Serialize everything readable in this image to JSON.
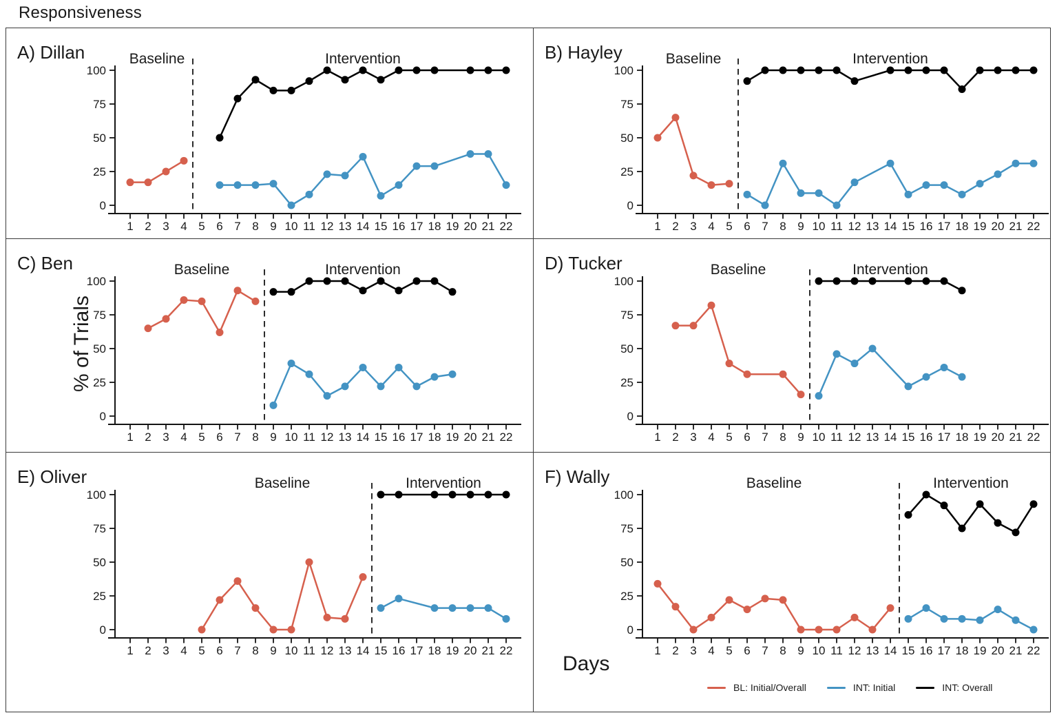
{
  "title": "Responsiveness",
  "ylabel": "% of Trials",
  "xlabel": "Days",
  "colors": {
    "bl_initial_overall": "#d6604d",
    "int_initial": "#4393c3",
    "int_overall": "#000000"
  },
  "phase_labels": {
    "baseline": "Baseline",
    "intervention": "Intervention"
  },
  "legend": {
    "items": [
      {
        "label": "BL: Initial/Overall",
        "color_key": "bl_initial_overall"
      },
      {
        "label": "INT: Initial",
        "color_key": "int_initial"
      },
      {
        "label": "INT: Overall",
        "color_key": "int_overall"
      }
    ]
  },
  "axes": {
    "ylim": [
      0,
      100
    ],
    "yticks": [
      0,
      25,
      50,
      75,
      100
    ],
    "xticks": [
      1,
      2,
      3,
      4,
      5,
      6,
      7,
      8,
      9,
      10,
      11,
      12,
      13,
      14,
      15,
      16,
      17,
      18,
      19,
      20,
      21,
      22
    ]
  },
  "chart_data": [
    {
      "panel_label": "A) Dillan",
      "type": "line",
      "phase_change_day": 4.5,
      "series": [
        {
          "name": "BL: Initial/Overall",
          "color_key": "bl_initial_overall",
          "points": [
            [
              1,
              17
            ],
            [
              2,
              17
            ],
            [
              3,
              25
            ],
            [
              4,
              33
            ]
          ]
        },
        {
          "name": "INT: Initial",
          "color_key": "int_initial",
          "points": [
            [
              6,
              15
            ],
            [
              7,
              15
            ],
            [
              8,
              15
            ],
            [
              9,
              16
            ],
            [
              10,
              0
            ],
            [
              11,
              8
            ],
            [
              12,
              23
            ],
            [
              13,
              22
            ],
            [
              14,
              36
            ],
            [
              15,
              7
            ],
            [
              16,
              15
            ],
            [
              17,
              29
            ],
            [
              18,
              29
            ],
            [
              20,
              38
            ],
            [
              21,
              38
            ],
            [
              22,
              15
            ]
          ]
        },
        {
          "name": "INT: Overall",
          "color_key": "int_overall",
          "points": [
            [
              6,
              50
            ],
            [
              7,
              79
            ],
            [
              8,
              93
            ],
            [
              9,
              85
            ],
            [
              10,
              85
            ],
            [
              11,
              92
            ],
            [
              12,
              100
            ],
            [
              13,
              93
            ],
            [
              14,
              100
            ],
            [
              15,
              93
            ],
            [
              16,
              100
            ],
            [
              17,
              100
            ],
            [
              18,
              100
            ],
            [
              20,
              100
            ],
            [
              21,
              100
            ],
            [
              22,
              100
            ]
          ]
        }
      ]
    },
    {
      "panel_label": "B) Hayley",
      "type": "line",
      "phase_change_day": 5.5,
      "series": [
        {
          "name": "BL: Initial/Overall",
          "color_key": "bl_initial_overall",
          "points": [
            [
              1,
              50
            ],
            [
              2,
              65
            ],
            [
              3,
              22
            ],
            [
              4,
              15
            ],
            [
              5,
              16
            ]
          ]
        },
        {
          "name": "INT: Initial",
          "color_key": "int_initial",
          "points": [
            [
              6,
              8
            ],
            [
              7,
              0
            ],
            [
              8,
              31
            ],
            [
              9,
              9
            ],
            [
              10,
              9
            ],
            [
              11,
              0
            ],
            [
              12,
              17
            ],
            [
              14,
              31
            ],
            [
              15,
              8
            ],
            [
              16,
              15
            ],
            [
              17,
              15
            ],
            [
              18,
              8
            ],
            [
              19,
              16
            ],
            [
              20,
              23
            ],
            [
              21,
              31
            ],
            [
              22,
              31
            ]
          ]
        },
        {
          "name": "INT: Overall",
          "color_key": "int_overall",
          "points": [
            [
              6,
              92
            ],
            [
              7,
              100
            ],
            [
              8,
              100
            ],
            [
              9,
              100
            ],
            [
              10,
              100
            ],
            [
              11,
              100
            ],
            [
              12,
              92
            ],
            [
              14,
              100
            ],
            [
              15,
              100
            ],
            [
              16,
              100
            ],
            [
              17,
              100
            ],
            [
              18,
              86
            ],
            [
              19,
              100
            ],
            [
              20,
              100
            ],
            [
              21,
              100
            ],
            [
              22,
              100
            ]
          ]
        }
      ]
    },
    {
      "panel_label": "C) Ben",
      "type": "line",
      "phase_change_day": 8.5,
      "series": [
        {
          "name": "BL: Initial/Overall",
          "color_key": "bl_initial_overall",
          "points": [
            [
              2,
              65
            ],
            [
              3,
              72
            ],
            [
              4,
              86
            ],
            [
              5,
              85
            ],
            [
              6,
              62
            ],
            [
              7,
              93
            ],
            [
              8,
              85
            ]
          ]
        },
        {
          "name": "INT: Initial",
          "color_key": "int_initial",
          "points": [
            [
              9,
              8
            ],
            [
              10,
              39
            ],
            [
              11,
              31
            ],
            [
              12,
              15
            ],
            [
              13,
              22
            ],
            [
              14,
              36
            ],
            [
              15,
              22
            ],
            [
              16,
              36
            ],
            [
              17,
              22
            ],
            [
              18,
              29
            ],
            [
              19,
              31
            ]
          ]
        },
        {
          "name": "INT: Overall",
          "color_key": "int_overall",
          "points": [
            [
              9,
              92
            ],
            [
              10,
              92
            ],
            [
              11,
              100
            ],
            [
              12,
              100
            ],
            [
              13,
              100
            ],
            [
              14,
              93
            ],
            [
              15,
              100
            ],
            [
              16,
              93
            ],
            [
              17,
              100
            ],
            [
              18,
              100
            ],
            [
              19,
              92
            ]
          ]
        }
      ]
    },
    {
      "panel_label": "D) Tucker",
      "type": "line",
      "phase_change_day": 9.5,
      "series": [
        {
          "name": "BL: Initial/Overall",
          "color_key": "bl_initial_overall",
          "points": [
            [
              2,
              67
            ],
            [
              3,
              67
            ],
            [
              4,
              82
            ],
            [
              5,
              39
            ],
            [
              6,
              31
            ],
            [
              8,
              31
            ],
            [
              9,
              16
            ]
          ]
        },
        {
          "name": "INT: Initial",
          "color_key": "int_initial",
          "points": [
            [
              10,
              15
            ],
            [
              11,
              46
            ],
            [
              12,
              39
            ],
            [
              13,
              50
            ],
            [
              15,
              22
            ],
            [
              16,
              29
            ],
            [
              17,
              36
            ],
            [
              18,
              29
            ]
          ]
        },
        {
          "name": "INT: Overall",
          "color_key": "int_overall",
          "points": [
            [
              10,
              100
            ],
            [
              11,
              100
            ],
            [
              12,
              100
            ],
            [
              13,
              100
            ],
            [
              15,
              100
            ],
            [
              16,
              100
            ],
            [
              17,
              100
            ],
            [
              18,
              93
            ]
          ]
        }
      ]
    },
    {
      "panel_label": "E) Oliver",
      "type": "line",
      "phase_change_day": 14.5,
      "series": [
        {
          "name": "BL: Initial/Overall",
          "color_key": "bl_initial_overall",
          "points": [
            [
              5,
              0
            ],
            [
              6,
              22
            ],
            [
              7,
              36
            ],
            [
              8,
              16
            ],
            [
              9,
              0
            ],
            [
              10,
              0
            ],
            [
              11,
              50
            ],
            [
              12,
              9
            ],
            [
              13,
              8
            ],
            [
              14,
              39
            ]
          ]
        },
        {
          "name": "INT: Initial",
          "color_key": "int_initial",
          "points": [
            [
              15,
              16
            ],
            [
              16,
              23
            ],
            [
              18,
              16
            ],
            [
              19,
              16
            ],
            [
              20,
              16
            ],
            [
              21,
              16
            ],
            [
              22,
              8
            ]
          ]
        },
        {
          "name": "INT: Overall",
          "color_key": "int_overall",
          "points": [
            [
              15,
              100
            ],
            [
              16,
              100
            ],
            [
              18,
              100
            ],
            [
              19,
              100
            ],
            [
              20,
              100
            ],
            [
              21,
              100
            ],
            [
              22,
              100
            ]
          ]
        }
      ]
    },
    {
      "panel_label": "F) Wally",
      "type": "line",
      "phase_change_day": 14.5,
      "series": [
        {
          "name": "BL: Initial/Overall",
          "color_key": "bl_initial_overall",
          "points": [
            [
              1,
              34
            ],
            [
              2,
              17
            ],
            [
              3,
              0
            ],
            [
              4,
              9
            ],
            [
              5,
              22
            ],
            [
              6,
              15
            ],
            [
              7,
              23
            ],
            [
              8,
              22
            ],
            [
              9,
              0
            ],
            [
              10,
              0
            ],
            [
              11,
              0
            ],
            [
              12,
              9
            ],
            [
              13,
              0
            ],
            [
              14,
              16
            ]
          ]
        },
        {
          "name": "INT: Initial",
          "color_key": "int_initial",
          "points": [
            [
              15,
              8
            ],
            [
              16,
              16
            ],
            [
              17,
              8
            ],
            [
              18,
              8
            ],
            [
              19,
              7
            ],
            [
              20,
              15
            ],
            [
              21,
              7
            ],
            [
              22,
              0
            ]
          ]
        },
        {
          "name": "INT: Overall",
          "color_key": "int_overall",
          "points": [
            [
              15,
              85
            ],
            [
              16,
              100
            ],
            [
              17,
              92
            ],
            [
              18,
              75
            ],
            [
              19,
              93
            ],
            [
              20,
              79
            ],
            [
              21,
              72
            ],
            [
              22,
              93
            ]
          ]
        }
      ]
    }
  ]
}
